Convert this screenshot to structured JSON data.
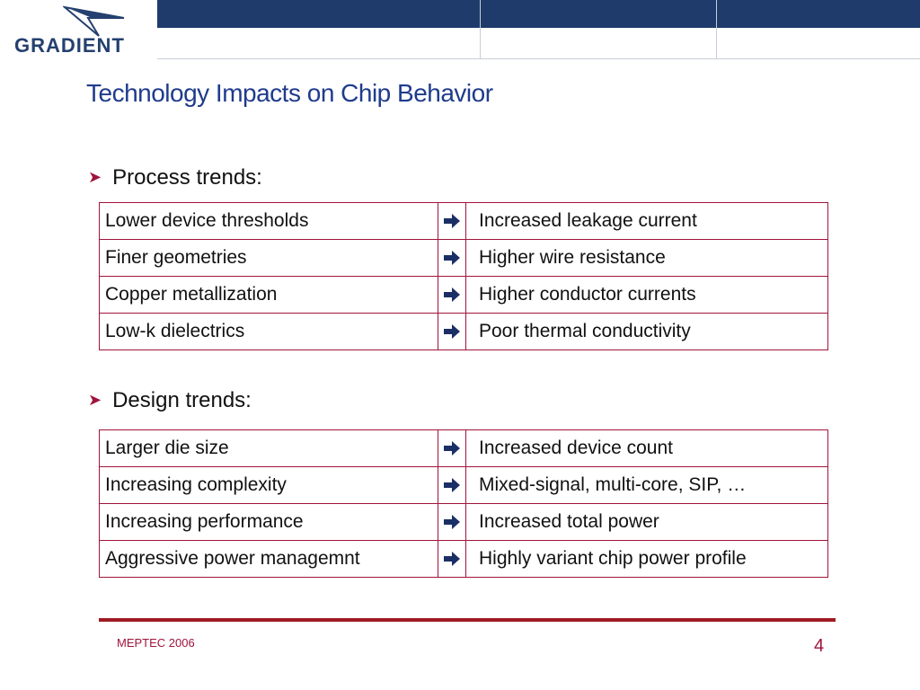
{
  "header": {
    "logo_text": "GRADIENT"
  },
  "title": "Technology Impacts on Chip Behavior",
  "sections": [
    {
      "heading": "Process trends:",
      "rows": [
        {
          "cause": "Lower device thresholds",
          "effect": "Increased leakage current"
        },
        {
          "cause": "Finer geometries",
          "effect": "Higher wire resistance"
        },
        {
          "cause": "Copper metallization",
          "effect": "Higher conductor currents"
        },
        {
          "cause": "Low-k dielectrics",
          "effect": "Poor thermal conductivity"
        }
      ]
    },
    {
      "heading": "Design trends:",
      "rows": [
        {
          "cause": "Larger die size",
          "effect": "Increased device count"
        },
        {
          "cause": "Increasing complexity",
          "effect": "Mixed-signal, multi-core, SIP, …"
        },
        {
          "cause": "Increasing performance",
          "effect": "Increased total power"
        },
        {
          "cause": "Aggressive power managemnt",
          "effect": "Highly variant chip power profile"
        }
      ]
    }
  ],
  "footer": {
    "left": "MEPTEC 2006",
    "page_number": "4"
  },
  "colors": {
    "band": "#1f3b6b",
    "title": "#1f3b8c",
    "accent": "#a0143c",
    "rule": "#9e1b24",
    "arrow": "#1a2f66"
  },
  "icons": {
    "bullet": "arrowhead-bullet-icon",
    "row_arrow": "right-arrow-icon"
  }
}
